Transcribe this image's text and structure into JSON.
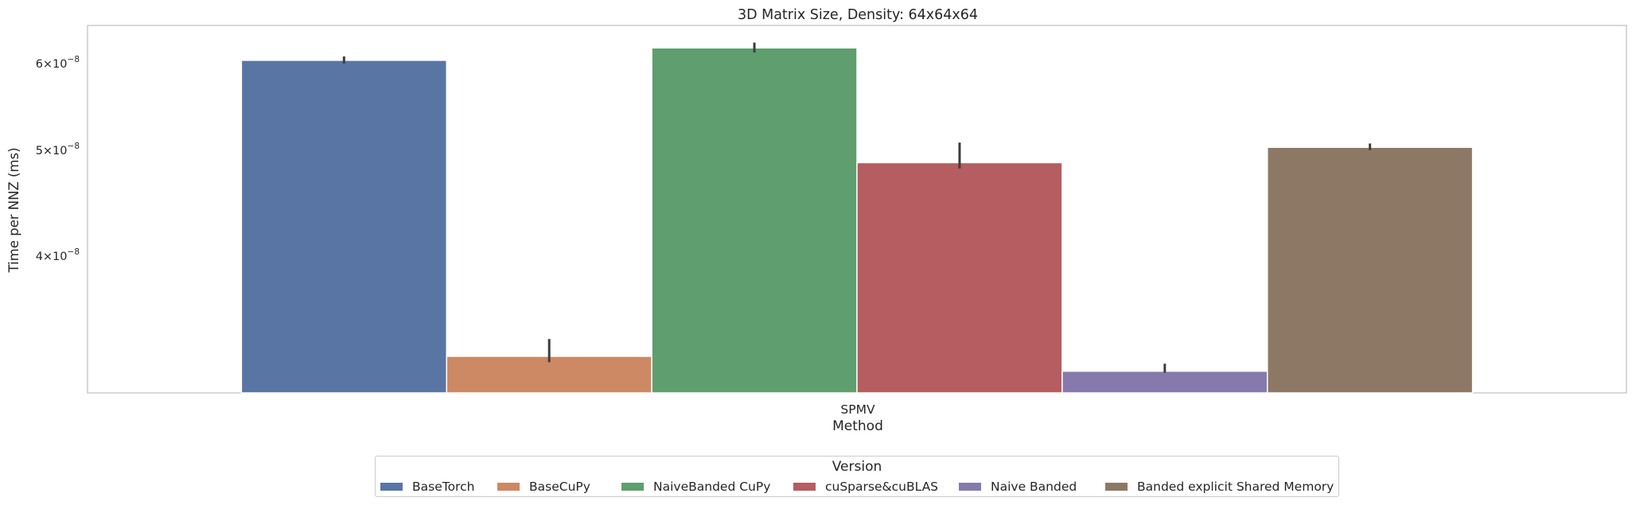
{
  "chart_data": {
    "type": "bar",
    "title": "3D Matrix Size, Density: 64x64x64",
    "xlabel": "Method",
    "ylabel": "Time per NNZ (ms)",
    "yscale": "log",
    "ylim": [
      3e-08,
      6.5e-08
    ],
    "grid": false,
    "categories": [
      "SPMV"
    ],
    "yticks": [
      {
        "value": 4e-08,
        "mantissa": "4",
        "exponent": "−8"
      },
      {
        "value": 5e-08,
        "mantissa": "5",
        "exponent": "−8"
      },
      {
        "value": 6e-08,
        "mantissa": "6",
        "exponent": "−8"
      }
    ],
    "legend": {
      "title": "Version",
      "placement": "bottom-center"
    },
    "series": [
      {
        "name": "BaseTorch",
        "color": "#5875a4",
        "values": [
          6.04e-08
        ],
        "error": [
          [
            6e-08,
            6.09e-08
          ]
        ]
      },
      {
        "name": "BaseCuPy",
        "color": "#cc8963",
        "values": [
          3.24e-08
        ],
        "error": [
          [
            3.2e-08,
            3.36e-08
          ]
        ]
      },
      {
        "name": "NaiveBanded CuPy",
        "color": "#5f9e6e",
        "values": [
          6.2e-08
        ],
        "error": [
          [
            6.14e-08,
            6.27e-08
          ]
        ]
      },
      {
        "name": "cuSparse&cuBLAS",
        "color": "#b55d60",
        "values": [
          4.87e-08
        ],
        "error": [
          [
            4.81e-08,
            5.08e-08
          ]
        ]
      },
      {
        "name": "Naive Banded",
        "color": "#857aab",
        "values": [
          3.14e-08
        ],
        "error": [
          [
            3.13e-08,
            3.19e-08
          ]
        ]
      },
      {
        "name": "Banded explicit Shared Memory",
        "color": "#8d7866",
        "values": [
          5.03e-08
        ],
        "error": [
          [
            5e-08,
            5.07e-08
          ]
        ]
      }
    ]
  }
}
